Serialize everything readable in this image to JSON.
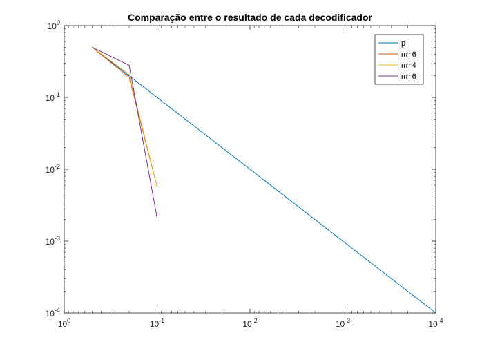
{
  "chart_data": {
    "type": "line",
    "title": "Comparação entre o resultado de cada decodificador",
    "xlabel": "",
    "ylabel": "",
    "xscale": "log",
    "yscale": "log",
    "x_direction": "reversed",
    "xlim": [
      1,
      0.0001
    ],
    "ylim": [
      0.0001,
      1
    ],
    "x_ticks": [
      {
        "value": 1,
        "base": "10",
        "exp": "0"
      },
      {
        "value": 0.1,
        "base": "10",
        "exp": "-1"
      },
      {
        "value": 0.01,
        "base": "10",
        "exp": "-2"
      },
      {
        "value": 0.001,
        "base": "10",
        "exp": "-3"
      },
      {
        "value": 0.0001,
        "base": "10",
        "exp": "-4"
      }
    ],
    "y_ticks": [
      {
        "value": 1,
        "base": "10",
        "exp": "0"
      },
      {
        "value": 0.1,
        "base": "10",
        "exp": "-1"
      },
      {
        "value": 0.01,
        "base": "10",
        "exp": "-2"
      },
      {
        "value": 0.001,
        "base": "10",
        "exp": "-3"
      },
      {
        "value": 0.0001,
        "base": "10",
        "exp": "-4"
      }
    ],
    "grid": false,
    "legend_position": "top-right",
    "series": [
      {
        "name": "p",
        "color": "#0072BD",
        "x": [
          0.5,
          0.2,
          0.1,
          0.01,
          0.001,
          0.0001
        ],
        "y": [
          0.5,
          0.2,
          0.1,
          0.01,
          0.001,
          0.0001
        ]
      },
      {
        "name": "m=6",
        "color": "#D95319",
        "x": [
          0.5,
          0.2,
          0.1
        ],
        "y": [
          0.5,
          0.19,
          0.0057
        ]
      },
      {
        "name": "m=4",
        "color": "#EDB120",
        "x": [
          0.5,
          0.2,
          0.1
        ],
        "y": [
          0.5,
          0.21,
          0.0057
        ]
      },
      {
        "name": "m=6",
        "color": "#7E2F8E",
        "x": [
          0.5,
          0.2,
          0.1
        ],
        "y": [
          0.5,
          0.28,
          0.0021
        ]
      }
    ]
  }
}
